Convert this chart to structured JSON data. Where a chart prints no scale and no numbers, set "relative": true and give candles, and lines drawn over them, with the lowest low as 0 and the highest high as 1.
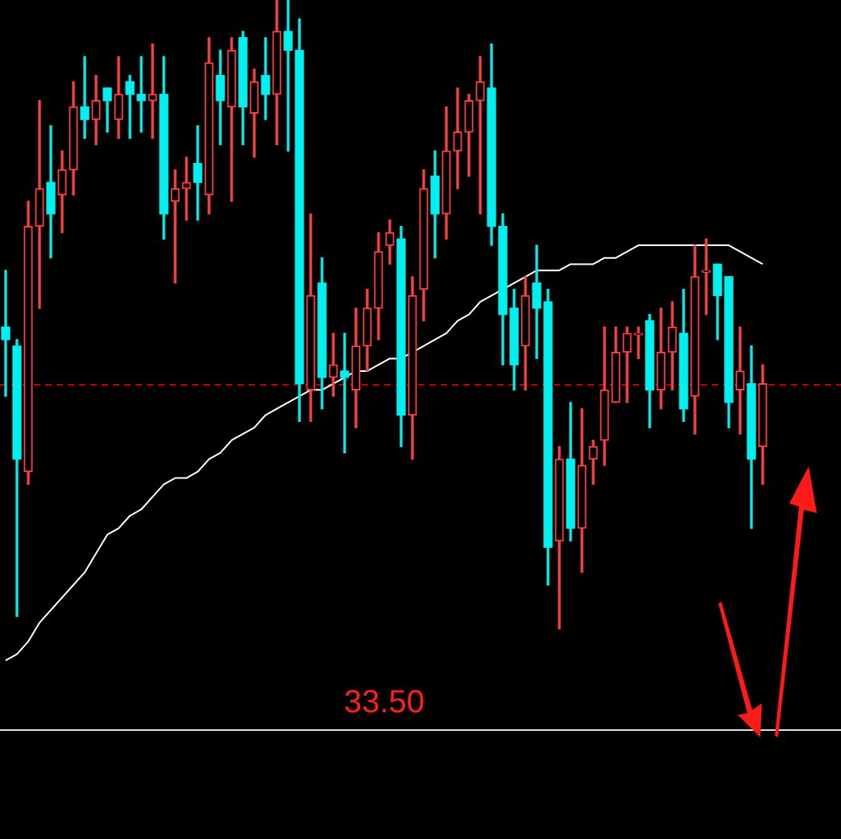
{
  "chart_data": {
    "type": "candlestick",
    "relative": true,
    "tick_labels": false,
    "categories": [
      null,
      null,
      null,
      null,
      null,
      null,
      null,
      null,
      null,
      null,
      null,
      null,
      null,
      null,
      null,
      null,
      null,
      null,
      null,
      null,
      null,
      null,
      null,
      null,
      null,
      null,
      null,
      null,
      null,
      null,
      null,
      null,
      null,
      null,
      null,
      null,
      null,
      null,
      null,
      null,
      null,
      null,
      null,
      null,
      null,
      null,
      null,
      null,
      null,
      null,
      null,
      null,
      null,
      null,
      null,
      null,
      null,
      null,
      null,
      null,
      null,
      null,
      null,
      null,
      null,
      null,
      null,
      null
    ],
    "ohlc": [
      [
        0.48,
        0.57,
        0.37,
        0.46
      ],
      [
        0.45,
        0.46,
        0.02,
        0.27
      ],
      [
        0.25,
        0.68,
        0.23,
        0.64
      ],
      [
        0.64,
        0.84,
        0.51,
        0.7
      ],
      [
        0.71,
        0.8,
        0.59,
        0.66
      ],
      [
        0.69,
        0.76,
        0.63,
        0.73
      ],
      [
        0.73,
        0.87,
        0.69,
        0.83
      ],
      [
        0.83,
        0.91,
        0.78,
        0.81
      ],
      [
        0.81,
        0.88,
        0.77,
        0.84
      ],
      [
        0.86,
        0.86,
        0.79,
        0.84
      ],
      [
        0.81,
        0.91,
        0.78,
        0.85
      ],
      [
        0.87,
        0.88,
        0.78,
        0.85
      ],
      [
        0.85,
        0.91,
        0.79,
        0.84
      ],
      [
        0.84,
        0.93,
        0.78,
        0.85
      ],
      [
        0.85,
        0.91,
        0.62,
        0.66
      ],
      [
        0.68,
        0.73,
        0.55,
        0.7
      ],
      [
        0.7,
        0.75,
        0.65,
        0.71
      ],
      [
        0.74,
        0.8,
        0.65,
        0.71
      ],
      [
        0.69,
        0.94,
        0.66,
        0.9
      ],
      [
        0.88,
        0.92,
        0.77,
        0.84
      ],
      [
        0.83,
        0.94,
        0.68,
        0.92
      ],
      [
        0.94,
        0.95,
        0.77,
        0.83
      ],
      [
        0.82,
        0.89,
        0.75,
        0.87
      ],
      [
        0.88,
        0.94,
        0.81,
        0.85
      ],
      [
        0.85,
        1,
        0.77,
        0.95
      ],
      [
        0.95,
        1,
        0.76,
        0.92
      ],
      [
        0.92,
        0.97,
        0.33,
        0.39
      ],
      [
        0.38,
        0.66,
        0.33,
        0.53
      ],
      [
        0.55,
        0.59,
        0.35,
        0.4
      ],
      [
        0.4,
        0.47,
        0.37,
        0.42
      ],
      [
        0.41,
        0.47,
        0.28,
        0.4
      ],
      [
        0.38,
        0.51,
        0.32,
        0.45
      ],
      [
        0.45,
        0.54,
        0.41,
        0.51
      ],
      [
        0.51,
        0.63,
        0.46,
        0.6
      ],
      [
        0.61,
        0.65,
        0.58,
        0.63
      ],
      [
        0.62,
        0.64,
        0.29,
        0.34
      ],
      [
        0.34,
        0.56,
        0.27,
        0.53
      ],
      [
        0.54,
        0.73,
        0.49,
        0.7
      ],
      [
        0.72,
        0.76,
        0.59,
        0.66
      ],
      [
        0.66,
        0.83,
        0.62,
        0.76
      ],
      [
        0.76,
        0.86,
        0.7,
        0.79
      ],
      [
        0.79,
        0.85,
        0.72,
        0.84
      ],
      [
        0.84,
        0.91,
        0.66,
        0.87
      ],
      [
        0.86,
        0.93,
        0.61,
        0.64
      ],
      [
        0.64,
        0.66,
        0.42,
        0.5
      ],
      [
        0.51,
        0.54,
        0.38,
        0.42
      ],
      [
        0.45,
        0.56,
        0.38,
        0.53
      ],
      [
        0.55,
        0.61,
        0.43,
        0.51
      ],
      [
        0.52,
        0.54,
        0.07,
        0.13
      ],
      [
        0.14,
        0.29,
        0,
        0.27
      ],
      [
        0.27,
        0.36,
        0.14,
        0.16
      ],
      [
        0.16,
        0.35,
        0.09,
        0.26
      ],
      [
        0.27,
        0.3,
        0.23,
        0.29
      ],
      [
        0.3,
        0.48,
        0.26,
        0.38
      ],
      [
        0.36,
        0.48,
        0.36,
        0.44
      ],
      [
        0.44,
        0.48,
        0.36,
        0.47
      ],
      [
        0.47,
        0.48,
        0.43,
        0.47
      ],
      [
        0.49,
        0.5,
        0.32,
        0.38
      ],
      [
        0.38,
        0.51,
        0.35,
        0.44
      ],
      [
        0.44,
        0.52,
        0.38,
        0.48
      ],
      [
        0.47,
        0.54,
        0.33,
        0.35
      ],
      [
        0.37,
        0.61,
        0.31,
        0.56
      ],
      [
        0.57,
        0.62,
        0.5,
        0.57
      ],
      [
        0.58,
        0.58,
        0.46,
        0.53
      ],
      [
        0.56,
        0.56,
        0.32,
        0.36
      ],
      [
        0.38,
        0.48,
        0.31,
        0.41
      ],
      [
        0.39,
        0.45,
        0.16,
        0.27
      ],
      [
        0.29,
        0.42,
        0.23,
        0.39
      ]
    ],
    "colors": [
      "#00f0f0",
      "#00f0f0",
      "#ff4040",
      "#ff4040",
      "#00f0f0",
      "#ff4040",
      "#ff4040",
      "#00f0f0",
      "#ff4040",
      "#00f0f0",
      "#ff4040",
      "#00f0f0",
      "#00f0f0",
      "#ff4040",
      "#00f0f0",
      "#ff4040",
      "#ff4040",
      "#00f0f0",
      "#ff4040",
      "#00f0f0",
      "#ff4040",
      "#00f0f0",
      "#ff4040",
      "#00f0f0",
      "#ff4040",
      "#00f0f0",
      "#00f0f0",
      "#ff4040",
      "#00f0f0",
      "#ff4040",
      "#00f0f0",
      "#ff4040",
      "#ff4040",
      "#ff4040",
      "#ff4040",
      "#00f0f0",
      "#ff4040",
      "#ff4040",
      "#00f0f0",
      "#ff4040",
      "#ff4040",
      "#ff4040",
      "#ff4040",
      "#00f0f0",
      "#00f0f0",
      "#00f0f0",
      "#ff4040",
      "#00f0f0",
      "#00f0f0",
      "#ff4040",
      "#00f0f0",
      "#ff4040",
      "#ff4040",
      "#ff4040",
      "#ff4040",
      "#ff4040",
      "#ff4040",
      "#00f0f0",
      "#ff4040",
      "#ff4040",
      "#00f0f0",
      "#ff4040",
      "#ff4040",
      "#00f0f0",
      "#00f0f0",
      "#ff4040",
      "#00f0f0",
      "#ff4040"
    ],
    "series": [
      {
        "type": "line",
        "color": "#ffffff",
        "values": [
          -0.05,
          -0.04,
          -0.02,
          0.01,
          0.03,
          0.05,
          0.07,
          0.09,
          0.12,
          0.15,
          0.16,
          0.18,
          0.19,
          0.21,
          0.23,
          0.24,
          0.24,
          0.25,
          0.27,
          0.28,
          0.3,
          0.31,
          0.32,
          0.34,
          0.35,
          0.36,
          0.37,
          0.38,
          0.38,
          0.39,
          0.4,
          0.41,
          0.41,
          0.42,
          0.43,
          0.43,
          0.44,
          0.45,
          0.46,
          0.47,
          0.49,
          0.5,
          0.52,
          0.53,
          0.54,
          0.55,
          0.56,
          0.57,
          0.57,
          0.57,
          0.58,
          0.58,
          0.58,
          0.59,
          0.59,
          0.6,
          0.61,
          0.61,
          0.61,
          0.61,
          0.61,
          0.61,
          0.61,
          0.61,
          0.61,
          0.6,
          0.59,
          0.58
        ]
      }
    ],
    "ref_lines": [
      {
        "axis": "y",
        "value": 0.39,
        "color": "#c00000",
        "line_style": "dashed"
      },
      {
        "axis": "y",
        "value": -0.16,
        "color": "#e0e0e0"
      }
    ],
    "annotations": [
      "33.50"
    ]
  }
}
